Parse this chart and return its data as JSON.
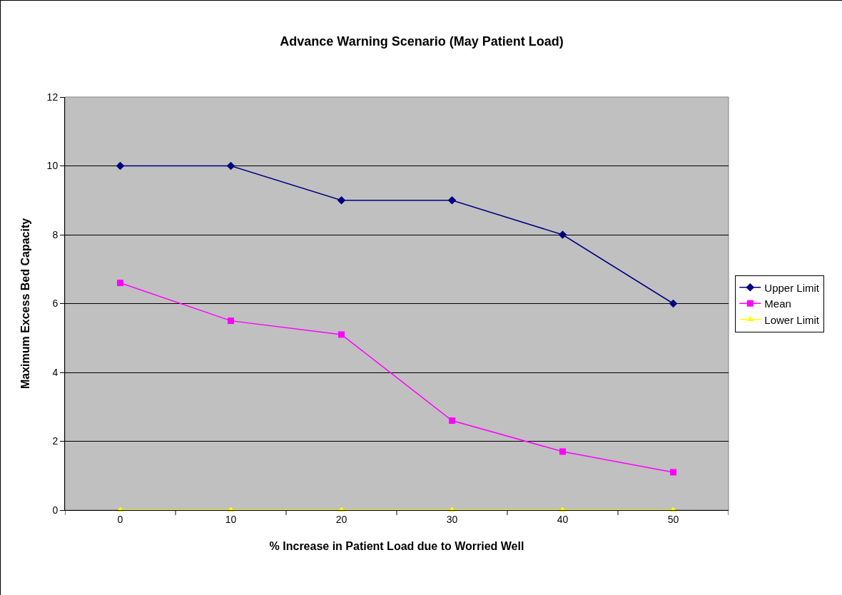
{
  "chart_data": {
    "type": "line",
    "title": "Advance Warning Scenario (May Patient Load)",
    "xlabel": "% Increase in Patient Load due to Worried Well",
    "ylabel": "Maximum Excess Bed Capacity",
    "categories": [
      "0",
      "10",
      "20",
      "30",
      "40",
      "50"
    ],
    "series": [
      {
        "name": "Upper Limit",
        "color": "#000080",
        "marker": "diamond",
        "values": [
          10,
          10,
          9,
          9,
          8,
          6
        ]
      },
      {
        "name": "Mean",
        "color": "#ff00ff",
        "marker": "square",
        "values": [
          6.6,
          5.5,
          5.1,
          2.6,
          1.7,
          1.1
        ]
      },
      {
        "name": "Lower Limit",
        "color": "#ffff00",
        "marker": "triangle",
        "values": [
          0,
          0,
          0,
          0,
          0,
          0
        ]
      }
    ],
    "ylim": [
      0,
      12
    ],
    "yticks": [
      0,
      2,
      4,
      6,
      8,
      10,
      12
    ],
    "grid": "y",
    "legend": "right",
    "line_style": "solid"
  }
}
